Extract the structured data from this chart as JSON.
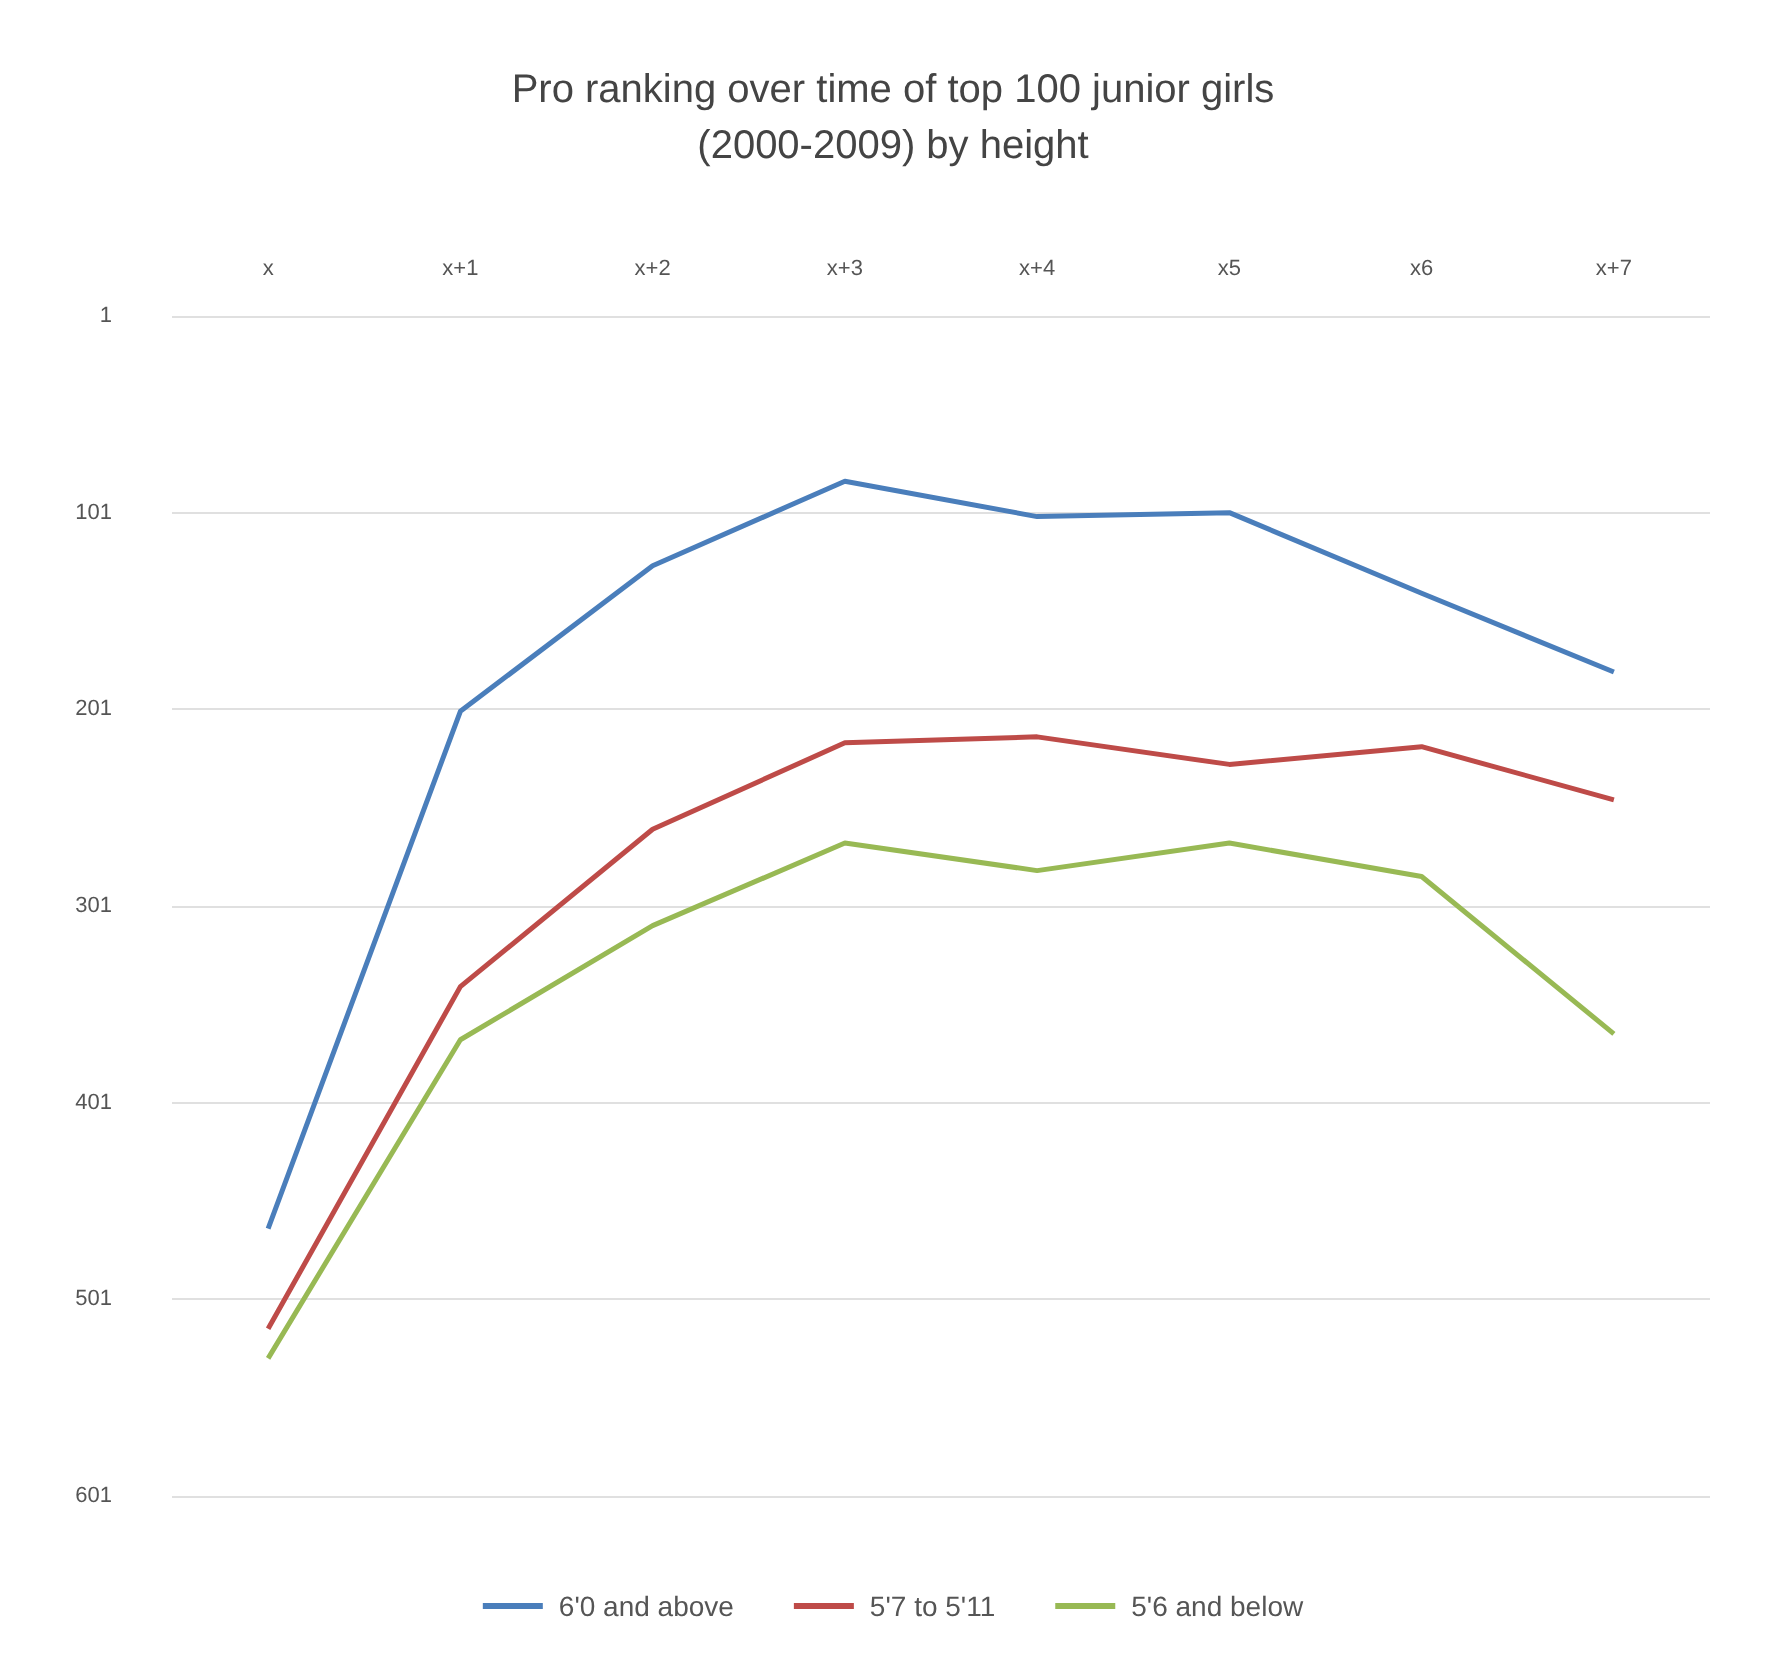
{
  "chart_data": {
    "type": "line",
    "title": "Pro ranking over time of top 100 junior girls\n(2000-2009) by height",
    "categories": [
      "x",
      "x+1",
      "x+2",
      "x+3",
      "x+4",
      "x5",
      "x6",
      "x+7"
    ],
    "series": [
      {
        "name": "6'0 and above",
        "color": "#4a7ebb",
        "values": [
          465,
          202,
          128,
          85,
          103,
          101,
          142,
          182
        ]
      },
      {
        "name": "5'7 to 5'11",
        "color": "#be4b48",
        "values": [
          516,
          342,
          262,
          218,
          215,
          229,
          220,
          247
        ]
      },
      {
        "name": "5'6 and below",
        "color": "#98b954",
        "values": [
          531,
          369,
          311,
          269,
          283,
          269,
          286,
          366
        ]
      }
    ],
    "ylim": [
      601,
      1
    ],
    "yticks": [
      1,
      101,
      201,
      301,
      401,
      501,
      601
    ],
    "grid": "y",
    "legend": "bottom",
    "marker": "none",
    "line_style": "solid"
  }
}
